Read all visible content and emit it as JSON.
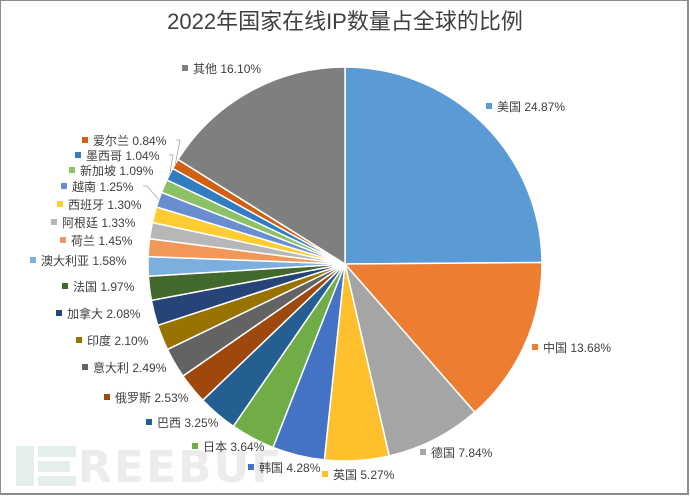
{
  "chart_data": {
    "type": "pie",
    "title": "2022年国家在线IP数量占全球的比例",
    "center": [
      345,
      264
    ],
    "radius": 197,
    "start_angle_deg": 0,
    "direction": "clockwise",
    "slices": [
      {
        "label": "美国",
        "value": 24.87,
        "display": "24.87%",
        "color": "#5b9bd5",
        "label_pos": [
          486,
          106
        ]
      },
      {
        "label": "中国",
        "value": 13.68,
        "display": "13.68%",
        "color": "#ed7d31",
        "label_pos": [
          532,
          347
        ]
      },
      {
        "label": "德国",
        "value": 7.84,
        "display": "7.84%",
        "color": "#a5a5a5",
        "label_pos": [
          420,
          452
        ]
      },
      {
        "label": "英国",
        "value": 5.27,
        "display": "5.27%",
        "color": "#ffc02e",
        "label_pos": [
          322,
          474
        ]
      },
      {
        "label": "韩国",
        "value": 4.28,
        "display": "4.28%",
        "color": "#4472c4",
        "label_pos": [
          248,
          467
        ]
      },
      {
        "label": "日本",
        "value": 3.64,
        "display": "3.64%",
        "color": "#70ad47",
        "label_pos": [
          192,
          446
        ]
      },
      {
        "label": "巴西",
        "value": 3.25,
        "display": "3.25%",
        "color": "#255e91",
        "label_pos": [
          146,
          422
        ]
      },
      {
        "label": "俄罗斯",
        "value": 2.53,
        "display": "2.53%",
        "color": "#9e480e",
        "label_pos": [
          104,
          397
        ]
      },
      {
        "label": "意大利",
        "value": 2.49,
        "display": "2.49%",
        "color": "#636363",
        "label_pos": [
          82,
          367
        ]
      },
      {
        "label": "印度",
        "value": 2.1,
        "display": "2.10%",
        "color": "#997300",
        "label_pos": [
          76,
          340
        ]
      },
      {
        "label": "加拿大",
        "value": 2.08,
        "display": "2.08%",
        "color": "#264478",
        "label_pos": [
          56,
          313
        ]
      },
      {
        "label": "法国",
        "value": 1.97,
        "display": "1.97%",
        "color": "#43682b",
        "label_pos": [
          62,
          286
        ]
      },
      {
        "label": "澳大利亚",
        "value": 1.58,
        "display": "1.58%",
        "color": "#7cafdd",
        "label_pos": [
          30,
          260
        ]
      },
      {
        "label": "荷兰",
        "value": 1.45,
        "display": "1.45%",
        "color": "#f1975a",
        "label_pos": [
          60,
          240
        ]
      },
      {
        "label": "阿根廷",
        "value": 1.33,
        "display": "1.33%",
        "color": "#b7b7b7",
        "label_pos": [
          51,
          222
        ]
      },
      {
        "label": "西班牙",
        "value": 1.3,
        "display": "1.30%",
        "color": "#ffcd33",
        "label_pos": [
          57,
          204
        ]
      },
      {
        "label": "越南",
        "value": 1.25,
        "display": "1.25%",
        "color": "#698ed0",
        "label_pos": [
          61,
          186
        ]
      },
      {
        "label": "新加坡",
        "value": 1.09,
        "display": "1.09%",
        "color": "#8cc168",
        "label_pos": [
          69,
          170
        ]
      },
      {
        "label": "墨西哥",
        "value": 1.04,
        "display": "1.04%",
        "color": "#327dc2",
        "label_pos": [
          75,
          155
        ]
      },
      {
        "label": "爱尔兰",
        "value": 0.84,
        "display": "0.84%",
        "color": "#d26012",
        "label_pos": [
          82,
          140
        ]
      },
      {
        "label": "其他",
        "value": 16.1,
        "display": "16.10%",
        "color": "#7f7f7f",
        "label_pos": [
          182,
          68
        ]
      }
    ],
    "leader_lines": [
      "爱尔兰",
      "墨西哥",
      "越南"
    ],
    "legend": "none (data labels with color swatches)"
  },
  "watermark": {
    "text": "REEBUF",
    "color": "#e4efe9"
  }
}
